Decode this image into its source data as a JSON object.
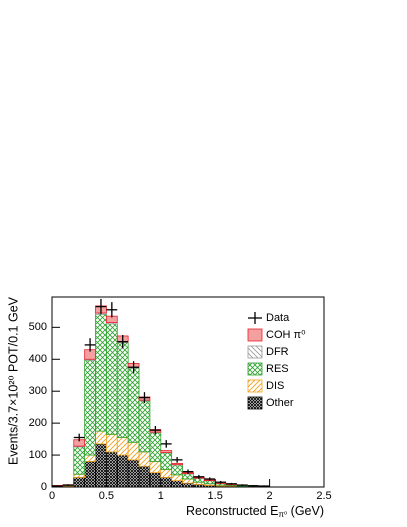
{
  "chart_data": {
    "type": "stacked_histogram",
    "xlabel": [
      "Reconstructed E",
      "π⁰",
      " (GeV)"
    ],
    "ylabel": "Events/3.7×10²⁰ POT/0.1 GeV",
    "bins": [
      0,
      0.1,
      0.2,
      0.3,
      0.4,
      0.5,
      0.6,
      0.7,
      0.8,
      0.9,
      1.0,
      1.1,
      1.2,
      1.3,
      1.4,
      1.5,
      1.6,
      1.7,
      1.8,
      1.9,
      2.0,
      2.1,
      2.2,
      2.3,
      2.4,
      2.5
    ],
    "xlim": [
      0,
      2.5
    ],
    "ylim": [
      0,
      595
    ],
    "xticks": [
      0,
      0.5,
      1,
      1.5,
      2,
      2.5
    ],
    "yticks": [
      0,
      100,
      200,
      300,
      400,
      500
    ],
    "legend_position": "upper-right",
    "series": [
      {
        "name": "Other",
        "color": "#000000",
        "hatch": "dense-crosshatch",
        "values": [
          2,
          3,
          30,
          80,
          135,
          110,
          100,
          85,
          65,
          45,
          30,
          20,
          12,
          8,
          5,
          3,
          2,
          1,
          1,
          0,
          0,
          0,
          0,
          0,
          0
        ]
      },
      {
        "name": "DIS",
        "color": "#f0a020",
        "hatch": "diagonal",
        "values": [
          1,
          2,
          10,
          20,
          40,
          55,
          55,
          55,
          45,
          35,
          25,
          18,
          13,
          7,
          5,
          3,
          2,
          1,
          1,
          1,
          0,
          0,
          0,
          0,
          0
        ]
      },
      {
        "name": "RES",
        "color": "#2ca02c",
        "hatch": "crosshatch",
        "values": [
          1,
          1,
          86,
          297,
          366,
          346,
          297,
          232,
          160,
          90,
          52,
          31,
          16,
          12,
          10,
          5,
          3,
          2,
          1,
          0,
          0,
          0,
          0,
          0,
          0
        ]
      },
      {
        "name": "DFR",
        "color": "#999999",
        "hatch": "diagonal-back",
        "values": [
          0,
          0,
          2,
          3,
          4,
          4,
          3,
          3,
          2,
          2,
          1,
          1,
          1,
          1,
          0,
          0,
          0,
          0,
          0,
          0,
          0,
          0,
          0,
          0,
          0
        ]
      },
      {
        "name": "COH π⁰",
        "color": "#e8202a",
        "hatch": "solid",
        "values": [
          1,
          1,
          20,
          30,
          22,
          20,
          18,
          12,
          10,
          8,
          6,
          4,
          3,
          2,
          2,
          1,
          1,
          0,
          0,
          0,
          0,
          0,
          0,
          0,
          0
        ]
      }
    ],
    "data": {
      "name": "Data",
      "color": "#000000",
      "x": [
        0.05,
        0.15,
        0.25,
        0.35,
        0.45,
        0.55,
        0.65,
        0.75,
        0.85,
        0.95,
        1.05,
        1.15,
        1.25,
        1.35,
        1.45,
        1.55,
        1.65,
        1.75,
        1.85,
        1.95
      ],
      "values": [
        3,
        6,
        155,
        445,
        565,
        555,
        455,
        375,
        280,
        178,
        135,
        85,
        48,
        32,
        25,
        15,
        10,
        6,
        4,
        3
      ],
      "errors": [
        2,
        2.5,
        12,
        21,
        24,
        24,
        21,
        19,
        17,
        13,
        12,
        9,
        7,
        6,
        5,
        4,
        3,
        2.5,
        2,
        2
      ]
    }
  }
}
